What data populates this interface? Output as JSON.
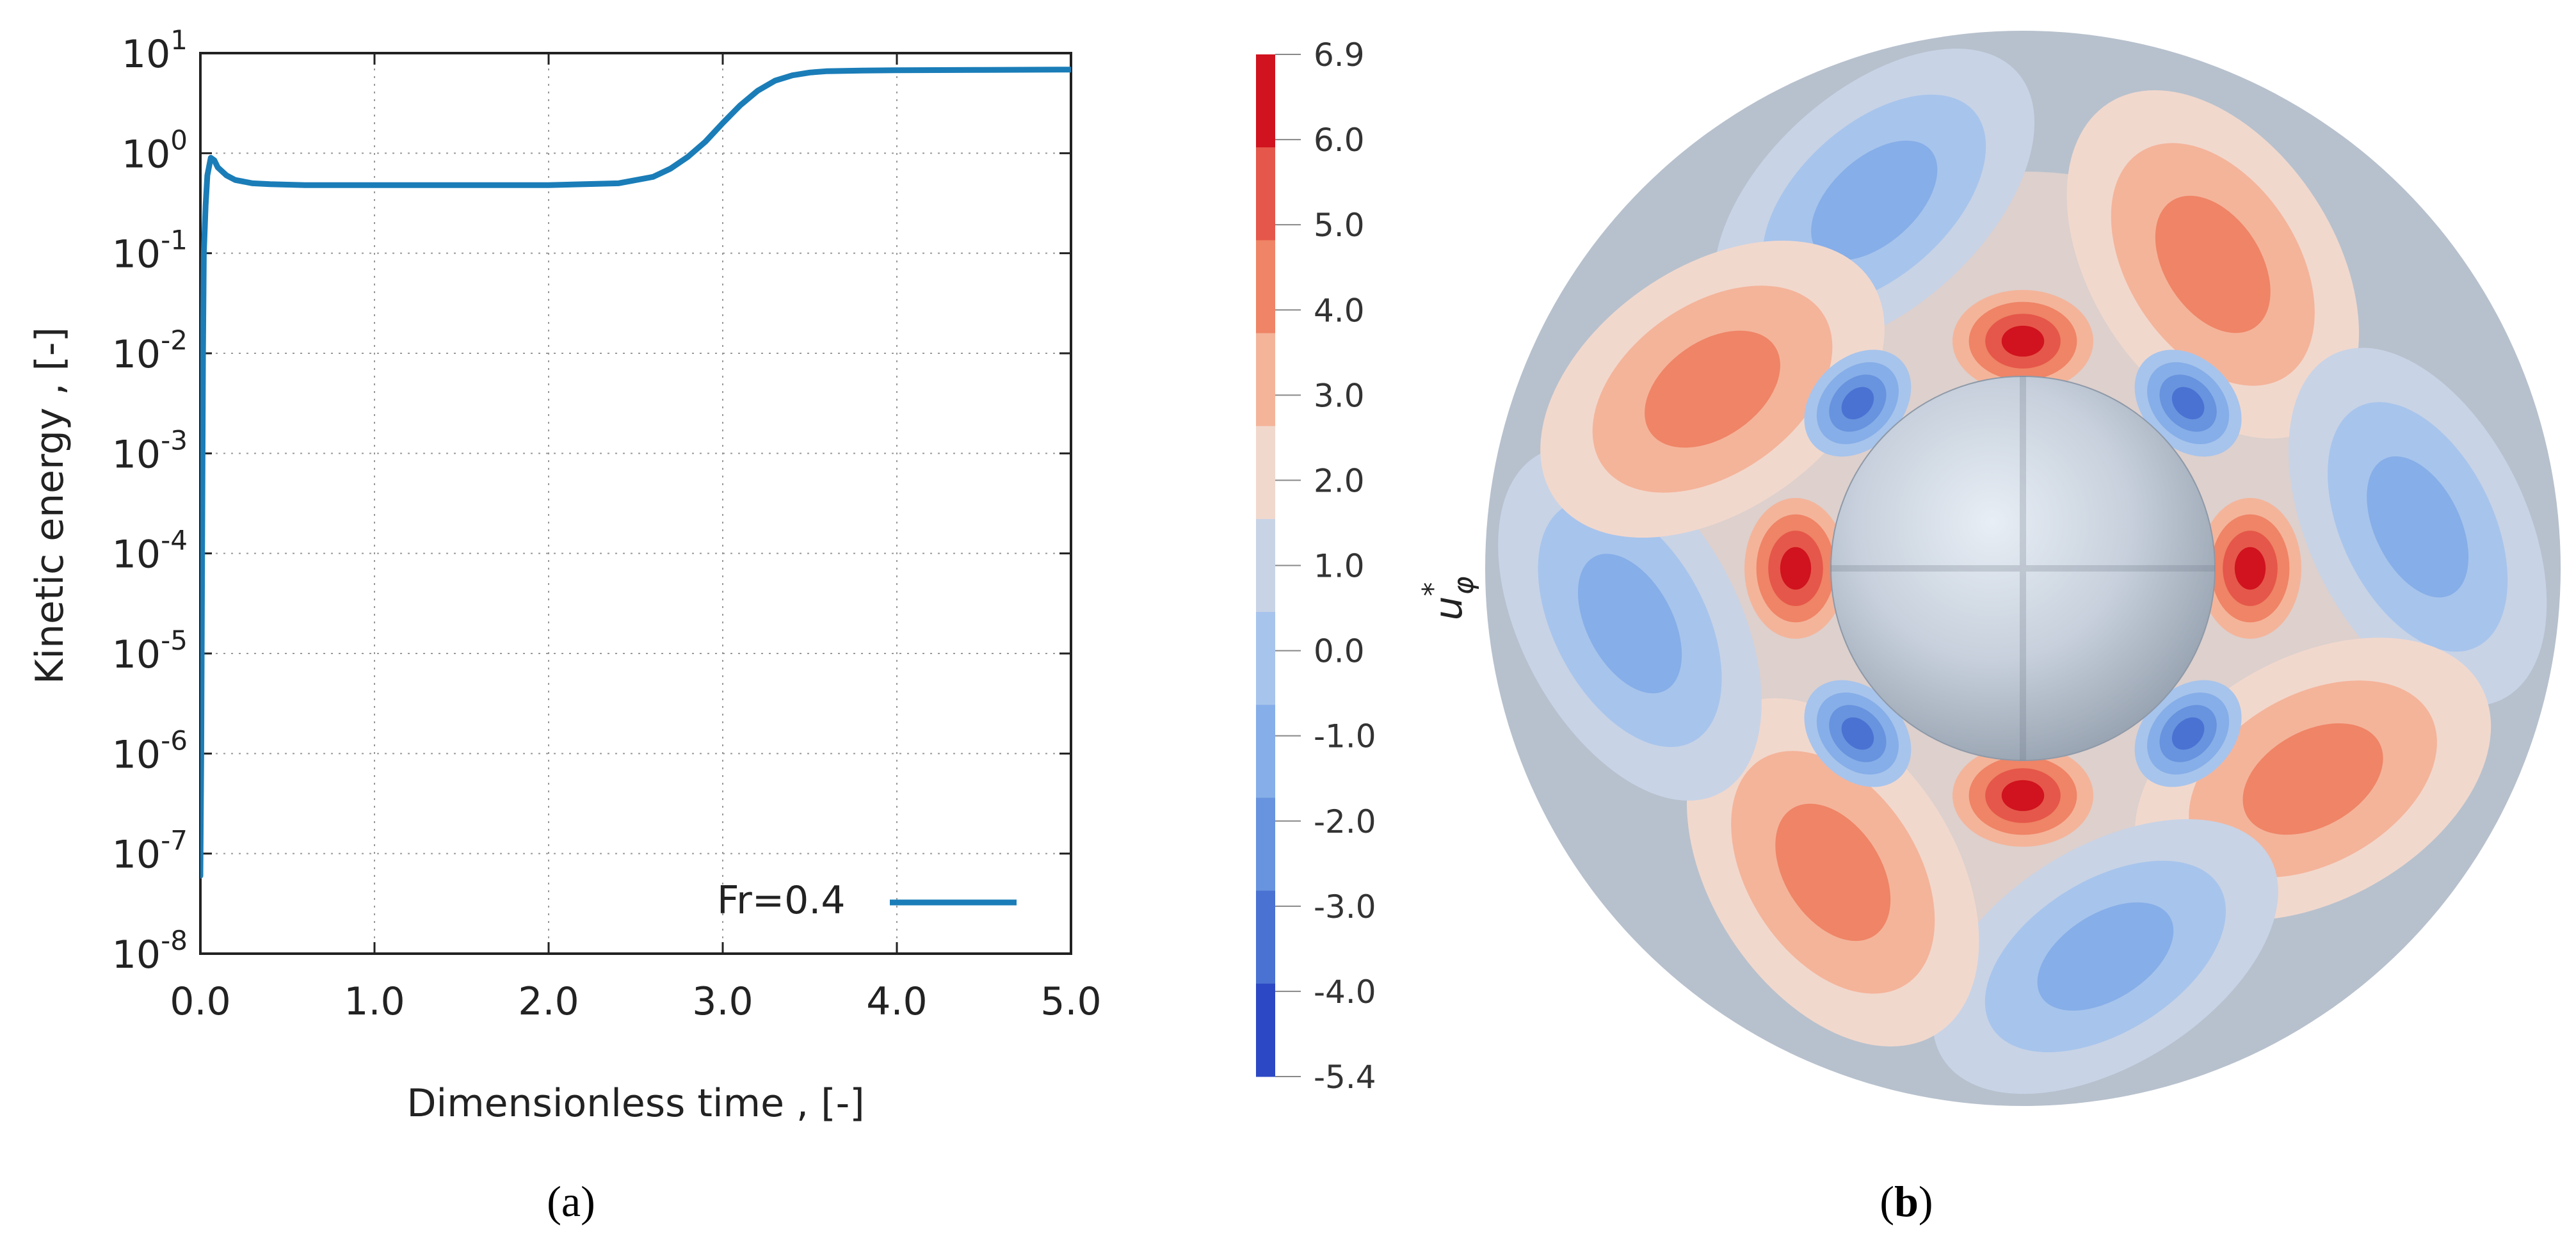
{
  "panel_a": {
    "label_open": "(",
    "label_letter": "a",
    "label_close": ")"
  },
  "panel_b": {
    "label_open": "(",
    "label_letter": "b",
    "label_close": ")"
  },
  "chart_data": [
    {
      "type": "line",
      "title": "",
      "xlabel": "Dimensionless time , [-]",
      "ylabel": "Kinetic energy , [-]",
      "xlim": [
        0.0,
        5.0
      ],
      "ylim": [
        1e-08,
        10
      ],
      "yscale": "log",
      "grid": true,
      "x_ticks": [
        0.0,
        1.0,
        2.0,
        3.0,
        4.0,
        5.0
      ],
      "x_tick_labels": [
        "0.0",
        "1.0",
        "2.0",
        "3.0",
        "4.0",
        "5.0"
      ],
      "y_tick_exponents": [
        "-8",
        "-7",
        "-6",
        "-5",
        "-4",
        "-3",
        "-2",
        "-1",
        "0",
        "1"
      ],
      "y_tick_base": "10",
      "legend_position": "bottom-right",
      "series": [
        {
          "name": "Fr=0.4",
          "color": "#1a7db8",
          "x": [
            0.0,
            0.005,
            0.01,
            0.015,
            0.02,
            0.03,
            0.04,
            0.06,
            0.08,
            0.1,
            0.15,
            0.2,
            0.3,
            0.4,
            0.6,
            0.8,
            1.0,
            1.5,
            2.0,
            2.4,
            2.6,
            2.7,
            2.8,
            2.9,
            3.0,
            3.1,
            3.2,
            3.3,
            3.4,
            3.5,
            3.6,
            3.8,
            4.0,
            4.5,
            5.0
          ],
          "y": [
            6e-08,
            1e-06,
            0.0001,
            0.01,
            0.1,
            0.3,
            0.6,
            0.9,
            0.85,
            0.72,
            0.6,
            0.54,
            0.5,
            0.49,
            0.48,
            0.48,
            0.48,
            0.48,
            0.48,
            0.5,
            0.58,
            0.7,
            0.92,
            1.3,
            2.0,
            3.0,
            4.2,
            5.3,
            6.0,
            6.4,
            6.6,
            6.7,
            6.75,
            6.8,
            6.85
          ]
        }
      ]
    },
    {
      "type": "heatmap",
      "title": "",
      "colorbar_label": "u",
      "colorbar_label_superscript": "*",
      "colorbar_label_subscript": "φ",
      "colorbar_range": [
        -5.4,
        6.9
      ],
      "colorbar_ticks": [
        "6.9",
        "6.0",
        "5.0",
        "4.0",
        "3.0",
        "2.0",
        "1.0",
        "0.0",
        "-1.0",
        "-2.0",
        "-3.0",
        "-4.0",
        "-5.4"
      ],
      "colorbar_colors": [
        "#d0131f",
        "#e5574a",
        "#ef8466",
        "#f4b49a",
        "#f1d8cd",
        "#c8d3e6",
        "#a7c4ec",
        "#86aee8",
        "#6893de",
        "#4972d2",
        "#2c48c4"
      ],
      "background_color": "#b7c1cd",
      "sphere_color": "#c8d2de"
    }
  ]
}
